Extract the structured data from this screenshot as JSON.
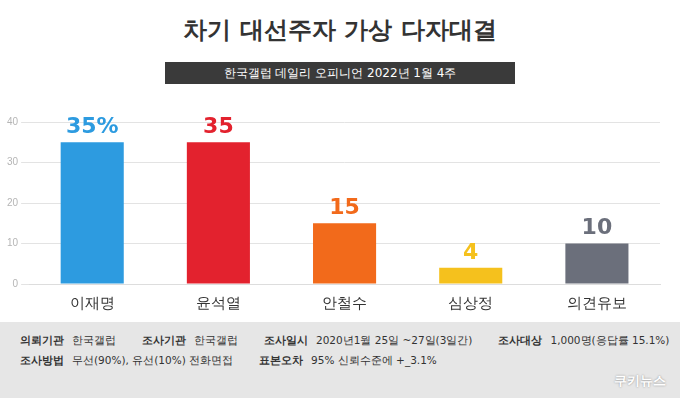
{
  "chart_data": {
    "type": "bar",
    "title": "차기 대선주자 가상 다자대결",
    "subtitle": "한국갤럽 데일리 오피니언 2022년 1월 4주",
    "categories": [
      "이재명",
      "윤석열",
      "안철수",
      "심상정",
      "의견유보"
    ],
    "values": [
      35,
      35,
      15,
      4,
      10
    ],
    "value_labels": [
      "35%",
      "35",
      "15",
      "4",
      "10"
    ],
    "colors": [
      "#2d9be0",
      "#e3222e",
      "#f26a1b",
      "#f5c11d",
      "#6b6f7b"
    ],
    "ylim": [
      0,
      40
    ],
    "yticks": [
      0,
      10,
      20,
      30,
      40
    ],
    "grid": true,
    "data_labels": true
  },
  "footer": [
    [
      {
        "label": "의뢰기관",
        "text": "한국갤럽"
      },
      {
        "label": "조사기관",
        "text": "한국갤럽"
      },
      {
        "label": "조사일시",
        "text": "2020년1월 25일 ~27일(3일간)"
      },
      {
        "label": "조사대상",
        "text": "1,000명(응답률 15.1%)"
      }
    ],
    [
      {
        "label": "조사방법",
        "text": "무선(90%), 유선(10%) 전화면접"
      },
      {
        "label": "표본오차",
        "text": "95% 신뢰수준에 +_3.1%"
      }
    ]
  ],
  "source": "쿠키뉴스"
}
